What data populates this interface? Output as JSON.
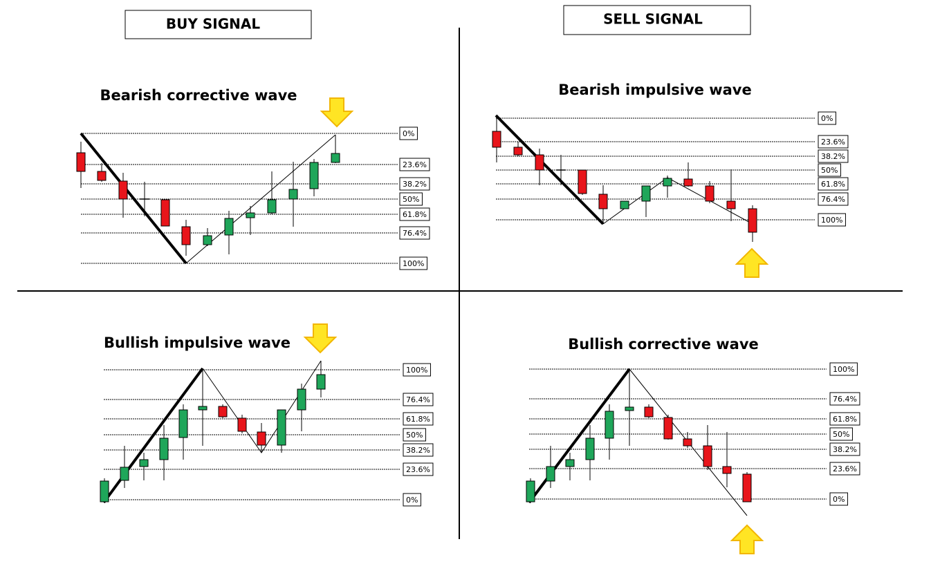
{
  "headers": {
    "buy": "BUY SIGNAL",
    "sell": "SELL SIGNAL"
  },
  "panels": [
    {
      "title": "Bearish corrective wave",
      "levels": [
        "0%",
        "23.6%",
        "38.2%",
        "50%",
        "61.8%",
        "76.4%",
        "100%"
      ]
    },
    {
      "title": "Bearish impulsive wave",
      "levels": [
        "0%",
        "23.6%",
        "38.2%",
        "50%",
        "61.8%",
        "76.4%",
        "100%"
      ]
    },
    {
      "title": "Bullish impulsive wave",
      "levels": [
        "100%",
        "76.4%",
        "61.8%",
        "50%",
        "38.2%",
        "23.6%",
        "0%"
      ]
    },
    {
      "title": "Bullish corrective wave",
      "levels": [
        "100%",
        "76.4%",
        "61.8%",
        "50%",
        "38.2%",
        "23.6%",
        "0%"
      ]
    }
  ]
}
